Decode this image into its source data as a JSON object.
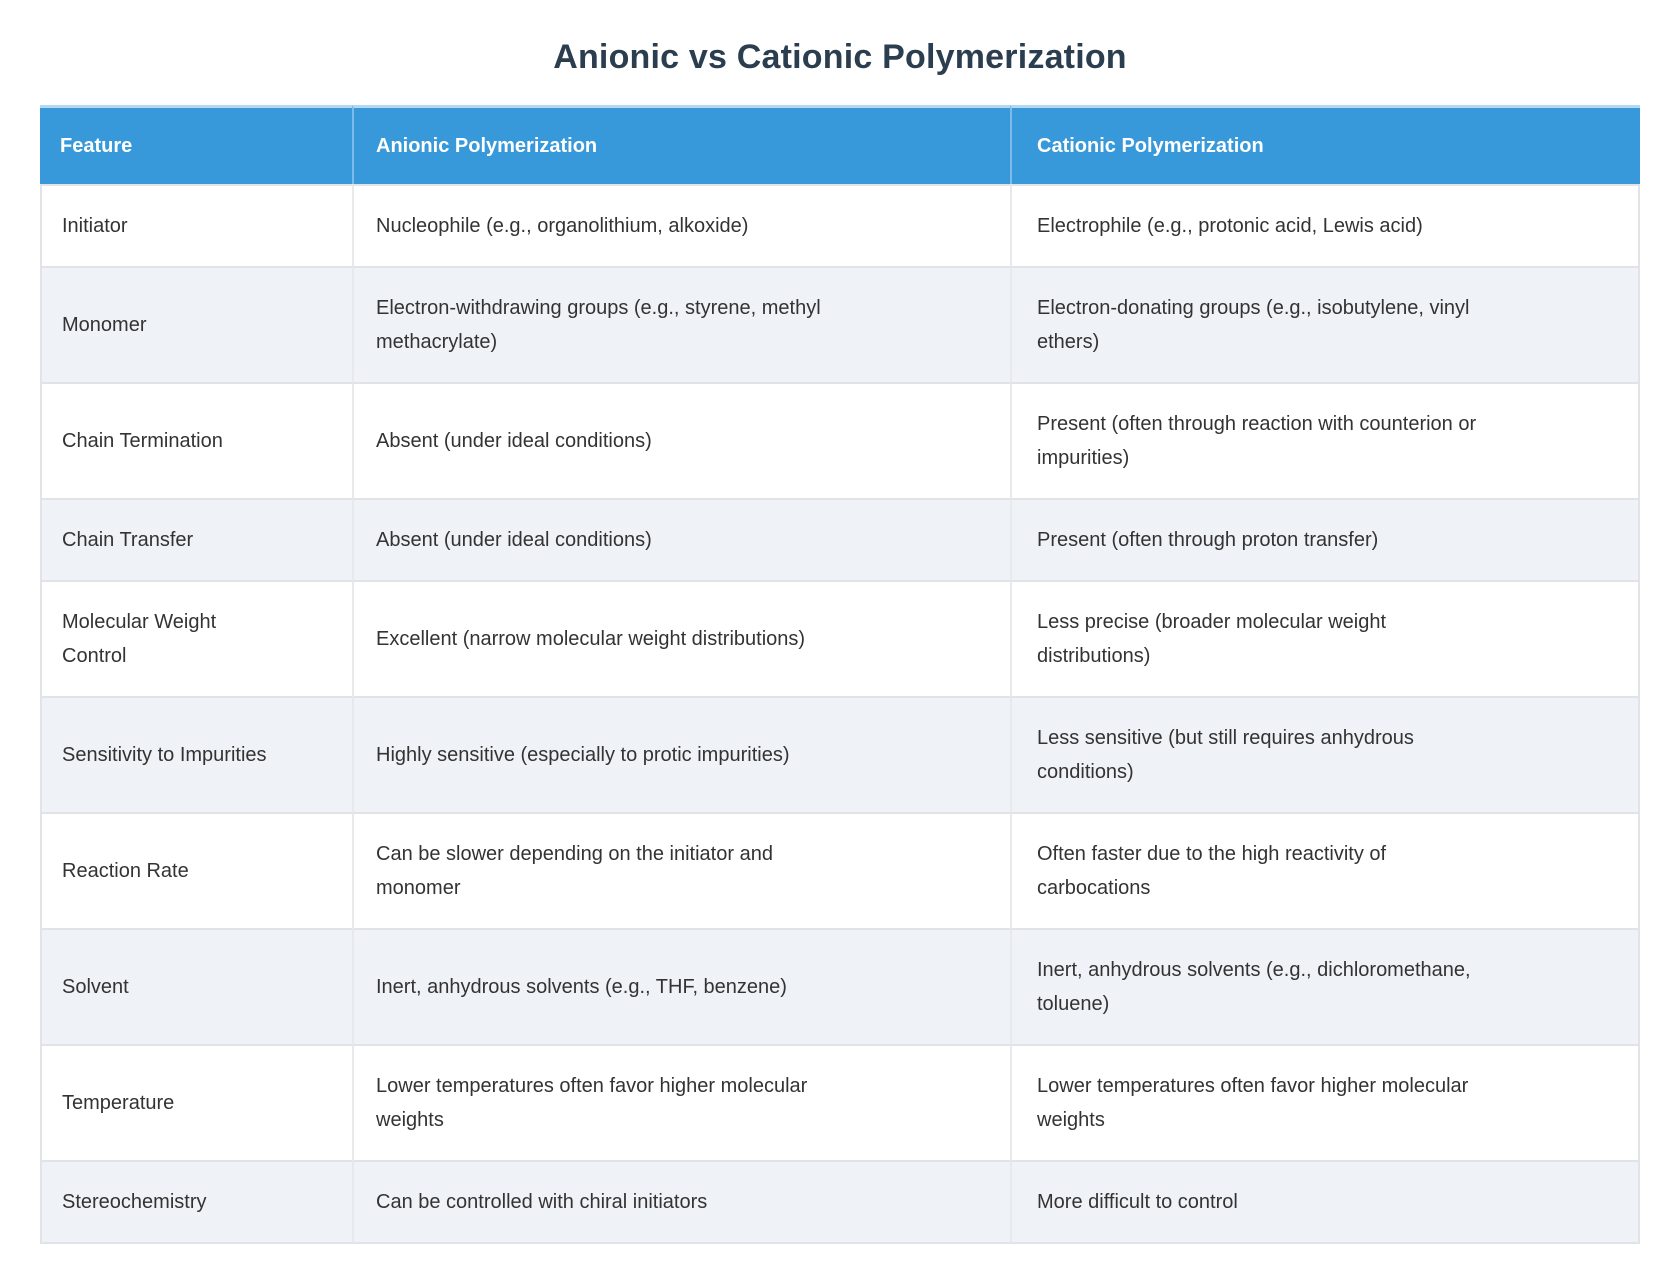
{
  "colors": {
    "header_bg": "#3798da",
    "header_text": "#ffffff",
    "header_top_border": "#b3d8f2",
    "row_even_bg": "#eff2f7",
    "row_odd_bg": "#ffffff",
    "grid_border": "#e2e3e6",
    "title_text": "#2b3e50",
    "body_text": "#333333"
  },
  "chart_data": {
    "type": "table",
    "title": "Anionic vs Cationic Polymerization",
    "columns": [
      "Feature",
      "Anionic Polymerization",
      "Cationic Polymerization"
    ],
    "rows": [
      [
        "Initiator",
        "Nucleophile (e.g., organolithium, alkoxide)",
        "Electrophile (e.g., protonic acid, Lewis acid)"
      ],
      [
        "Monomer",
        "Electron-withdrawing groups (e.g., styrene, methyl methacrylate)",
        "Electron-donating groups (e.g., isobutylene, vinyl ethers)"
      ],
      [
        "Chain Termination",
        "Absent (under ideal conditions)",
        "Present (often through reaction with counterion or impurities)"
      ],
      [
        "Chain Transfer",
        "Absent (under ideal conditions)",
        "Present (often through proton transfer)"
      ],
      [
        "Molecular Weight Control",
        "Excellent (narrow molecular weight distributions)",
        "Less precise (broader molecular weight distributions)"
      ],
      [
        "Sensitivity to Impurities",
        "Highly sensitive (especially to protic impurities)",
        "Less sensitive (but still requires anhydrous conditions)"
      ],
      [
        "Reaction Rate",
        "Can be slower depending on the initiator and monomer",
        "Often faster due to the high reactivity of carbocations"
      ],
      [
        "Solvent",
        "Inert, anhydrous solvents (e.g., THF, benzene)",
        "Inert, anhydrous solvents (e.g., dichloromethane, toluene)"
      ],
      [
        "Temperature",
        "Lower temperatures often favor higher molecular weights",
        "Lower temperatures often favor higher molecular weights"
      ],
      [
        "Stereochemistry",
        "Can be controlled with chiral initiators",
        "More difficult to control"
      ]
    ]
  }
}
